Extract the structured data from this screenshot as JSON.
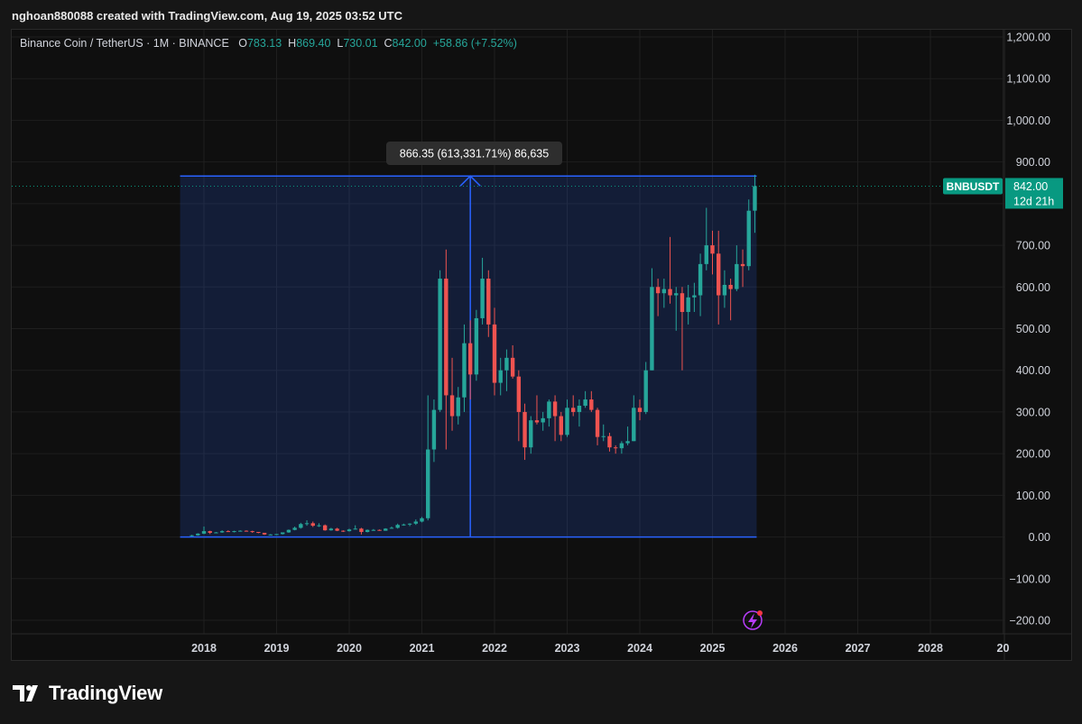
{
  "watermark": "nghoan880088 created with TradingView.com, Aug 19, 2025 03:52 UTC",
  "legend": {
    "symbol": "Binance Coin / TetherUS · 1M · BINANCE",
    "o_key": "O",
    "o_val": "783.13",
    "h_key": "H",
    "h_val": "869.40",
    "l_key": "L",
    "l_val": "730.01",
    "c_key": "C",
    "c_val": "842.00",
    "change": "+58.86 (+7.52%)"
  },
  "measure_label": "866.35 (613,331.71%) 86,635",
  "price_badge": {
    "ticker": "BNBUSDT",
    "price": "842.00",
    "countdown": "12d 21h"
  },
  "brand": "TradingView",
  "colors": {
    "up": "#26a69a",
    "down": "#ef5350",
    "measure": "#2962ff",
    "badge": "#089981"
  },
  "chart_data": {
    "type": "candlestick",
    "y_ticks": [
      "1,200.00",
      "1,100.00",
      "1,000.00",
      "900.00",
      "800.00",
      "700.00",
      "600.00",
      "500.00",
      "400.00",
      "300.00",
      "200.00",
      "100.00",
      "0.00",
      "−100.00",
      "−200.00"
    ],
    "y_tick_values": [
      1200,
      1100,
      1000,
      900,
      800,
      700,
      600,
      500,
      400,
      300,
      200,
      100,
      0,
      -100,
      -200
    ],
    "x_ticks": [
      "2018",
      "2019",
      "2020",
      "2021",
      "2022",
      "2023",
      "2024",
      "2025",
      "2026",
      "2027",
      "2028",
      "20"
    ],
    "ylim": [
      -200,
      1200
    ],
    "last_price": 842.0,
    "measure": {
      "start_x": "2017-11",
      "end_x": "2025-08",
      "low": 0,
      "high": 866.35,
      "arrow_x": "2021-09"
    },
    "candles": [
      {
        "t": "2017-11",
        "o": 2,
        "h": 5,
        "l": 1,
        "c": 4
      },
      {
        "t": "2017-12",
        "o": 4,
        "h": 9,
        "l": 3,
        "c": 8
      },
      {
        "t": "2018-01",
        "o": 8,
        "h": 25,
        "l": 7,
        "c": 14
      },
      {
        "t": "2018-02",
        "o": 14,
        "h": 15,
        "l": 7,
        "c": 10
      },
      {
        "t": "2018-03",
        "o": 10,
        "h": 12,
        "l": 9,
        "c": 11
      },
      {
        "t": "2018-04",
        "o": 11,
        "h": 16,
        "l": 10,
        "c": 14
      },
      {
        "t": "2018-05",
        "o": 14,
        "h": 16,
        "l": 12,
        "c": 13
      },
      {
        "t": "2018-06",
        "o": 13,
        "h": 15,
        "l": 11,
        "c": 14
      },
      {
        "t": "2018-07",
        "o": 14,
        "h": 16,
        "l": 13,
        "c": 15
      },
      {
        "t": "2018-08",
        "o": 15,
        "h": 16,
        "l": 13,
        "c": 14
      },
      {
        "t": "2018-09",
        "o": 14,
        "h": 15,
        "l": 10,
        "c": 12
      },
      {
        "t": "2018-10",
        "o": 12,
        "h": 12,
        "l": 9,
        "c": 10
      },
      {
        "t": "2018-11",
        "o": 10,
        "h": 10,
        "l": 5,
        "c": 6
      },
      {
        "t": "2018-12",
        "o": 6,
        "h": 7,
        "l": 4,
        "c": 6
      },
      {
        "t": "2019-01",
        "o": 6,
        "h": 7,
        "l": 5,
        "c": 7
      },
      {
        "t": "2019-02",
        "o": 7,
        "h": 11,
        "l": 6,
        "c": 11
      },
      {
        "t": "2019-03",
        "o": 11,
        "h": 18,
        "l": 10,
        "c": 17
      },
      {
        "t": "2019-04",
        "o": 17,
        "h": 25,
        "l": 16,
        "c": 22
      },
      {
        "t": "2019-05",
        "o": 22,
        "h": 34,
        "l": 20,
        "c": 31
      },
      {
        "t": "2019-06",
        "o": 31,
        "h": 40,
        "l": 27,
        "c": 33
      },
      {
        "t": "2019-07",
        "o": 33,
        "h": 37,
        "l": 24,
        "c": 27
      },
      {
        "t": "2019-08",
        "o": 27,
        "h": 33,
        "l": 24,
        "c": 28
      },
      {
        "t": "2019-09",
        "o": 28,
        "h": 30,
        "l": 15,
        "c": 16
      },
      {
        "t": "2019-10",
        "o": 16,
        "h": 22,
        "l": 15,
        "c": 20
      },
      {
        "t": "2019-11",
        "o": 20,
        "h": 22,
        "l": 14,
        "c": 15
      },
      {
        "t": "2019-12",
        "o": 15,
        "h": 16,
        "l": 12,
        "c": 14
      },
      {
        "t": "2020-01",
        "o": 14,
        "h": 20,
        "l": 13,
        "c": 18
      },
      {
        "t": "2020-02",
        "o": 18,
        "h": 28,
        "l": 18,
        "c": 20
      },
      {
        "t": "2020-03",
        "o": 20,
        "h": 22,
        "l": 6,
        "c": 12
      },
      {
        "t": "2020-04",
        "o": 12,
        "h": 18,
        "l": 11,
        "c": 17
      },
      {
        "t": "2020-05",
        "o": 17,
        "h": 19,
        "l": 15,
        "c": 17
      },
      {
        "t": "2020-06",
        "o": 17,
        "h": 18,
        "l": 15,
        "c": 15
      },
      {
        "t": "2020-07",
        "o": 15,
        "h": 21,
        "l": 15,
        "c": 20
      },
      {
        "t": "2020-08",
        "o": 20,
        "h": 25,
        "l": 20,
        "c": 22
      },
      {
        "t": "2020-09",
        "o": 22,
        "h": 32,
        "l": 20,
        "c": 29
      },
      {
        "t": "2020-10",
        "o": 29,
        "h": 32,
        "l": 27,
        "c": 30
      },
      {
        "t": "2020-11",
        "o": 30,
        "h": 33,
        "l": 26,
        "c": 32
      },
      {
        "t": "2020-12",
        "o": 32,
        "h": 42,
        "l": 29,
        "c": 37
      },
      {
        "t": "2021-01",
        "o": 37,
        "h": 48,
        "l": 35,
        "c": 45
      },
      {
        "t": "2021-02",
        "o": 45,
        "h": 340,
        "l": 40,
        "c": 210
      },
      {
        "t": "2021-03",
        "o": 210,
        "h": 330,
        "l": 180,
        "c": 305
      },
      {
        "t": "2021-04",
        "o": 305,
        "h": 640,
        "l": 300,
        "c": 620
      },
      {
        "t": "2021-05",
        "o": 620,
        "h": 690,
        "l": 210,
        "c": 340
      },
      {
        "t": "2021-06",
        "o": 340,
        "h": 430,
        "l": 255,
        "c": 290
      },
      {
        "t": "2021-07",
        "o": 290,
        "h": 360,
        "l": 270,
        "c": 335
      },
      {
        "t": "2021-08",
        "o": 335,
        "h": 510,
        "l": 300,
        "c": 465
      },
      {
        "t": "2021-09",
        "o": 465,
        "h": 520,
        "l": 330,
        "c": 390
      },
      {
        "t": "2021-10",
        "o": 390,
        "h": 545,
        "l": 375,
        "c": 525
      },
      {
        "t": "2021-11",
        "o": 525,
        "h": 670,
        "l": 510,
        "c": 620
      },
      {
        "t": "2021-12",
        "o": 620,
        "h": 640,
        "l": 480,
        "c": 510
      },
      {
        "t": "2022-01",
        "o": 510,
        "h": 550,
        "l": 340,
        "c": 370
      },
      {
        "t": "2022-02",
        "o": 370,
        "h": 430,
        "l": 340,
        "c": 400
      },
      {
        "t": "2022-03",
        "o": 400,
        "h": 450,
        "l": 350,
        "c": 430
      },
      {
        "t": "2022-04",
        "o": 430,
        "h": 460,
        "l": 380,
        "c": 385
      },
      {
        "t": "2022-05",
        "o": 385,
        "h": 400,
        "l": 230,
        "c": 300
      },
      {
        "t": "2022-06",
        "o": 300,
        "h": 320,
        "l": 185,
        "c": 215
      },
      {
        "t": "2022-07",
        "o": 215,
        "h": 290,
        "l": 200,
        "c": 280
      },
      {
        "t": "2022-08",
        "o": 280,
        "h": 340,
        "l": 270,
        "c": 275
      },
      {
        "t": "2022-09",
        "o": 275,
        "h": 300,
        "l": 255,
        "c": 285
      },
      {
        "t": "2022-10",
        "o": 285,
        "h": 330,
        "l": 265,
        "c": 325
      },
      {
        "t": "2022-11",
        "o": 325,
        "h": 340,
        "l": 230,
        "c": 290
      },
      {
        "t": "2022-12",
        "o": 290,
        "h": 300,
        "l": 230,
        "c": 245
      },
      {
        "t": "2023-01",
        "o": 245,
        "h": 330,
        "l": 240,
        "c": 310
      },
      {
        "t": "2023-02",
        "o": 310,
        "h": 340,
        "l": 290,
        "c": 300
      },
      {
        "t": "2023-03",
        "o": 300,
        "h": 330,
        "l": 265,
        "c": 315
      },
      {
        "t": "2023-04",
        "o": 315,
        "h": 350,
        "l": 310,
        "c": 330
      },
      {
        "t": "2023-05",
        "o": 330,
        "h": 350,
        "l": 300,
        "c": 305
      },
      {
        "t": "2023-06",
        "o": 305,
        "h": 310,
        "l": 220,
        "c": 240
      },
      {
        "t": "2023-07",
        "o": 240,
        "h": 270,
        "l": 230,
        "c": 242
      },
      {
        "t": "2023-08",
        "o": 242,
        "h": 250,
        "l": 205,
        "c": 215
      },
      {
        "t": "2023-09",
        "o": 215,
        "h": 220,
        "l": 200,
        "c": 213
      },
      {
        "t": "2023-10",
        "o": 213,
        "h": 230,
        "l": 200,
        "c": 225
      },
      {
        "t": "2023-11",
        "o": 225,
        "h": 265,
        "l": 220,
        "c": 230
      },
      {
        "t": "2023-12",
        "o": 230,
        "h": 340,
        "l": 230,
        "c": 310
      },
      {
        "t": "2024-01",
        "o": 310,
        "h": 330,
        "l": 280,
        "c": 300
      },
      {
        "t": "2024-02",
        "o": 300,
        "h": 420,
        "l": 295,
        "c": 400
      },
      {
        "t": "2024-03",
        "o": 400,
        "h": 645,
        "l": 400,
        "c": 600
      },
      {
        "t": "2024-04",
        "o": 600,
        "h": 620,
        "l": 530,
        "c": 585
      },
      {
        "t": "2024-05",
        "o": 585,
        "h": 620,
        "l": 550,
        "c": 595
      },
      {
        "t": "2024-06",
        "o": 595,
        "h": 720,
        "l": 560,
        "c": 580
      },
      {
        "t": "2024-07",
        "o": 580,
        "h": 600,
        "l": 495,
        "c": 585
      },
      {
        "t": "2024-08",
        "o": 585,
        "h": 600,
        "l": 400,
        "c": 540
      },
      {
        "t": "2024-09",
        "o": 540,
        "h": 605,
        "l": 510,
        "c": 575
      },
      {
        "t": "2024-10",
        "o": 575,
        "h": 610,
        "l": 540,
        "c": 580
      },
      {
        "t": "2024-11",
        "o": 580,
        "h": 680,
        "l": 530,
        "c": 655
      },
      {
        "t": "2024-12",
        "o": 655,
        "h": 790,
        "l": 640,
        "c": 700
      },
      {
        "t": "2025-01",
        "o": 700,
        "h": 735,
        "l": 630,
        "c": 680
      },
      {
        "t": "2025-02",
        "o": 680,
        "h": 735,
        "l": 510,
        "c": 580
      },
      {
        "t": "2025-03",
        "o": 580,
        "h": 640,
        "l": 550,
        "c": 605
      },
      {
        "t": "2025-04",
        "o": 605,
        "h": 620,
        "l": 520,
        "c": 595
      },
      {
        "t": "2025-05",
        "o": 595,
        "h": 700,
        "l": 590,
        "c": 655
      },
      {
        "t": "2025-06",
        "o": 655,
        "h": 690,
        "l": 600,
        "c": 650
      },
      {
        "t": "2025-07",
        "o": 650,
        "h": 810,
        "l": 640,
        "c": 783
      },
      {
        "t": "2025-08",
        "o": 783.13,
        "h": 869.4,
        "l": 730.01,
        "c": 842.0
      }
    ]
  }
}
